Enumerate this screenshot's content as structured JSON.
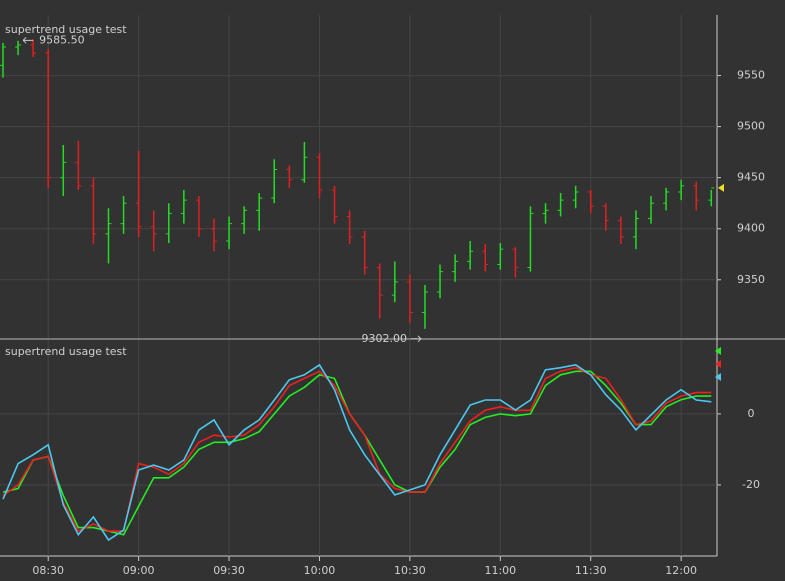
{
  "chart_data": [
    {
      "type": "ohlc",
      "title": "supertrend usage test",
      "open": [
        9560,
        9578,
        9580,
        9572,
        9450,
        9465,
        9442,
        9395,
        9405,
        9425,
        9402,
        9395,
        9415,
        9428,
        9400,
        9388,
        9405,
        9418,
        9430,
        9458,
        9448,
        9470,
        9438,
        9412,
        9392,
        9362,
        9335,
        9348,
        9318,
        9338,
        9358,
        9368,
        9378,
        9365,
        9380,
        9362,
        9415,
        9418,
        9428,
        9436,
        9422,
        9408,
        9392,
        9410,
        9425,
        9436,
        9442,
        9428
      ],
      "high": [
        9582,
        9584,
        9585.5,
        9576,
        9482,
        9486,
        9450,
        9420,
        9432,
        9476,
        9418,
        9425,
        9438,
        9432,
        9410,
        9412,
        9422,
        9435,
        9468,
        9462,
        9485,
        9474,
        9442,
        9418,
        9398,
        9366,
        9368,
        9355,
        9345,
        9365,
        9375,
        9388,
        9385,
        9386,
        9382,
        9422,
        9425,
        9435,
        9442,
        9438,
        9425,
        9412,
        9418,
        9432,
        9440,
        9448,
        9446,
        9438
      ],
      "low": [
        9548,
        9570,
        9568,
        9440,
        9432,
        9438,
        9385,
        9366,
        9395,
        9392,
        9378,
        9386,
        9405,
        9392,
        9378,
        9380,
        9395,
        9398,
        9425,
        9440,
        9445,
        9430,
        9405,
        9385,
        9355,
        9312,
        9328,
        9308,
        9302,
        9332,
        9348,
        9360,
        9358,
        9360,
        9352,
        9358,
        9405,
        9412,
        9420,
        9415,
        9398,
        9385,
        9380,
        9405,
        9418,
        9428,
        9418,
        9422
      ],
      "close": [
        9578,
        9580,
        9572,
        9450,
        9465,
        9442,
        9395,
        9405,
        9425,
        9402,
        9395,
        9415,
        9428,
        9400,
        9388,
        9405,
        9418,
        9430,
        9458,
        9448,
        9470,
        9438,
        9412,
        9392,
        9362,
        9335,
        9348,
        9318,
        9338,
        9358,
        9368,
        9378,
        9365,
        9380,
        9362,
        9415,
        9418,
        9428,
        9436,
        9422,
        9408,
        9392,
        9410,
        9425,
        9436,
        9442,
        9428,
        9440
      ],
      "up_color": "#22dd22",
      "down_color": "#e02020",
      "last_price_color": "#f0e020",
      "ylim": [
        9293,
        9624
      ],
      "yticks": [
        9350,
        9400,
        9450,
        9500,
        9550
      ],
      "grid": true,
      "annotations": [
        {
          "label": "9585.50",
          "value": 9585.5,
          "kind": "high"
        },
        {
          "label": "9302.00",
          "value": 9302,
          "kind": "low"
        }
      ]
    },
    {
      "type": "line",
      "title": "supertrend usage test",
      "categories": [
        null,
        null,
        null,
        "08:30",
        null,
        null,
        null,
        null,
        null,
        "09:00",
        null,
        null,
        null,
        null,
        null,
        "09:30",
        null,
        null,
        null,
        null,
        null,
        "10:00",
        null,
        null,
        null,
        null,
        null,
        "10:30",
        null,
        null,
        null,
        null,
        null,
        "11:00",
        null,
        null,
        null,
        null,
        null,
        "11:30",
        null,
        null,
        null,
        null,
        null,
        "12:00",
        null,
        null
      ],
      "series": [
        {
          "color": "#22ee22",
          "values": [
            -22,
            -21,
            -13,
            -12,
            -23,
            -32,
            -32,
            -33,
            -34,
            -26,
            -18,
            -18,
            -15,
            -10,
            -8,
            -8,
            -7,
            -5,
            0,
            5,
            7.5,
            11,
            10,
            0,
            -6,
            -13,
            -20,
            -22,
            -22,
            -15,
            -10,
            -3,
            -1,
            0,
            -0.5,
            0,
            8,
            11,
            12,
            12,
            8,
            3,
            -3,
            -3,
            2,
            4,
            5,
            5
          ]
        },
        {
          "color": "#ee2020",
          "values": [
            -23,
            -20,
            -13,
            -12,
            -25,
            -33,
            -31,
            -33,
            -33,
            -14,
            -15,
            -17,
            -14,
            -8,
            -6,
            -6.5,
            -6,
            -3,
            2,
            8,
            10,
            12,
            8,
            0,
            -6,
            -17,
            -21,
            -22,
            -22,
            -14,
            -8,
            -2,
            1,
            2,
            1,
            1,
            10,
            12,
            13,
            11,
            10,
            4,
            -3,
            -2,
            3,
            5,
            6,
            6
          ]
        },
        {
          "color": "#4cc8f0",
          "values": [
            -24,
            -14,
            -11.5,
            -8.7,
            -25.6,
            -34,
            -29,
            -35.5,
            -32.7,
            -15.8,
            -14.4,
            -15.8,
            -13,
            -4.5,
            -1.7,
            -8.7,
            -4.5,
            -1.7,
            3.9,
            9.6,
            11,
            13.8,
            6.8,
            -4.5,
            -11.5,
            -17.2,
            -22.8,
            -21.4,
            -20,
            -11.5,
            -4.5,
            2.5,
            3.9,
            3.9,
            1.1,
            3.9,
            12.4,
            13,
            13.8,
            11,
            5.4,
            1.1,
            -4.5,
            -0.3,
            3.9,
            6.8,
            3.9,
            3.4
          ]
        }
      ],
      "ylim": [
        -40,
        20.8
      ],
      "yticks": [
        0,
        -20
      ],
      "grid": true
    }
  ]
}
